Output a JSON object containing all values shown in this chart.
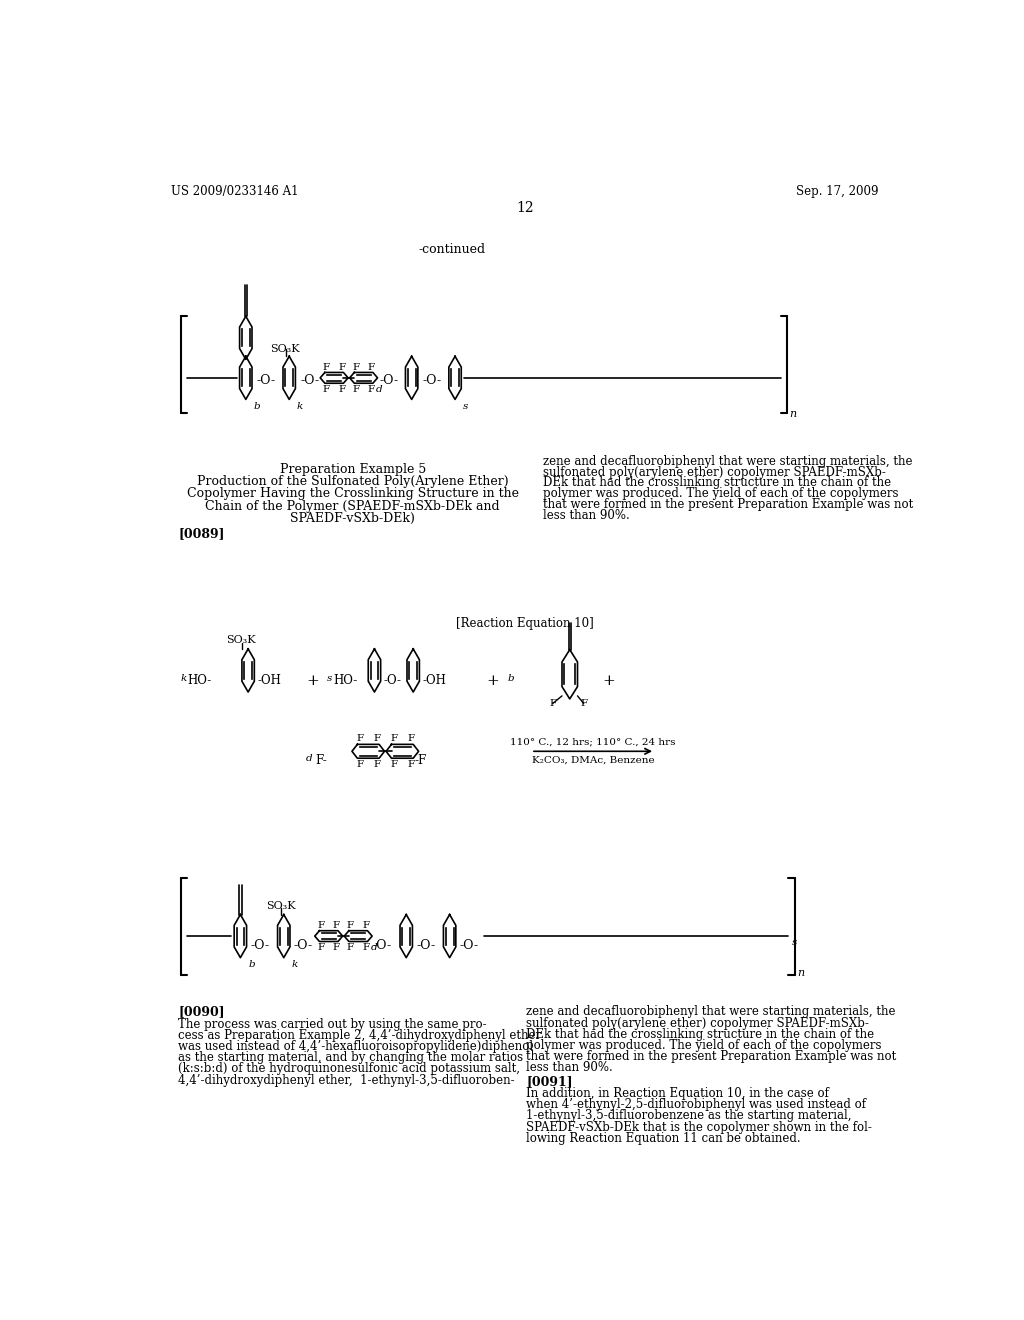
{
  "page_number": "12",
  "patent_number": "US 2009/0233146 A1",
  "patent_date": "Sep. 17, 2009",
  "continued_text": "-continued",
  "prep_example_title": "Preparation Example 5",
  "prep_example_line1": "Production of the Sulfonated Poly(Arylene Ether)",
  "prep_example_line2": "Copolymer Having the Crosslinking Structure in the",
  "prep_example_line3": "Chain of the Polymer (SPAEDF-mSXb-DEk and",
  "prep_example_line4": "SPAEDF-vSXb-DEk)",
  "para089": "[0089]",
  "para089_right": "zene and decafluorobiphenyl that were starting materials, the\nsulfonated poly(arylene ether) copolymer SPAEDF-mSXb-\nDEk that had the crosslinking structure in the chain of the\npolymer was produced. The yield of each of the copolymers\nthat were formed in the present Preparation Example was not\nless than 90%.",
  "rxn_eq_label": "[Reaction Equation 10]",
  "arrow_text1": "110° C., 12 hrs; 110° C., 24 hrs",
  "arrow_text2": "K₂CO₃, DMAc, Benzene",
  "para090": "[0090]",
  "para090_left": "The process was carried out by using the same pro-\ncess as Preparation Example 2, 4,4’-dihydroxydiphenyl ether\nwas used instead of 4,4’-hexafluoroisopropylidene)diphenol\nas the starting material, and by changing the molar ratios\n(k:s:b:d) of the hydroquinonesulfonic acid potassium salt,\n4,4’-dihydroxydiphenyl ether,  1-ethynyl-3,5-difluoroben-",
  "para090_right": "zene and decafluorobiphenyl that were starting materials, the\nsulfonated poly(arylene ether) copolymer SPAEDF-mSXb-\nDEk that had the crosslinking structure in the chain of the\npolymer was produced. The yield of each of the copolymers\nthat were formed in the present Preparation Example was not\nless than 90%.",
  "para091": "[0091]",
  "para091_right": "In addition, in Reaction Equation 10, in the case of\nwhen 4’-ethynyl-2,5-difluorobiphenyl was used instead of\n1-ethynyl-3,5-difluorobenzene as the starting material,\nSPAEDF-vSXb-DEk that is the copolymer shown in the fol-\nlowing Reaction Equation 11 can be obtained.",
  "bg_color": "#ffffff"
}
